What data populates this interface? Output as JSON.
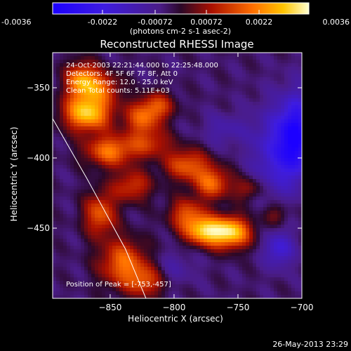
{
  "chart_data": {
    "type": "heatmap",
    "title": "Reconstructed RHESSI Image",
    "xlabel": "Heliocentric X (arcsec)",
    "ylabel": "Heliocentric Y (arcsec)",
    "xlim": [
      -895,
      -700
    ],
    "ylim": [
      -500,
      -325
    ],
    "x_ticks": [
      -850,
      -800,
      -750,
      -700
    ],
    "y_ticks": [
      -350,
      -400,
      -450
    ],
    "colorbar": {
      "range": [
        -0.0036,
        0.0036
      ],
      "tick_values": [
        -0.0036,
        -0.0022,
        -0.00072,
        0.00072,
        0.0022,
        0.0036
      ],
      "tick_labels": [
        "-0.0036",
        "-0.0022",
        "-0.00072",
        "0.00072",
        "0.0022",
        "0.0036"
      ],
      "units_label": "(photons cm-2 s-1 asec-2)"
    },
    "annotations": [
      "24-Oct-2003 22:21:44.000 to 22:25:48.000",
      "Detectors: 4F 5F 6F 7F 8F, Att 0",
      "Energy Range: 12.0 - 25.0 keV",
      "Clean    Total counts: 5.11E+03"
    ],
    "peak_label": "Position of Peak = [-753,-457]",
    "peak": [
      -753,
      -457
    ],
    "limb_curve": {
      "x": [
        -895,
        -868,
        -838,
        -822
      ],
      "y": [
        -372,
        -415,
        -465,
        -500
      ]
    },
    "sources": [
      {
        "x": -868,
        "y": -368,
        "value": 0.0034,
        "sx": 13,
        "sy": 9
      },
      {
        "x": -872,
        "y": -345,
        "value": 0.0028,
        "sx": 9,
        "sy": 9
      },
      {
        "x": -855,
        "y": -350,
        "value": 0.0016,
        "sx": 10,
        "sy": 8
      },
      {
        "x": -850,
        "y": -395,
        "value": 0.0024,
        "sx": 14,
        "sy": 8
      },
      {
        "x": -833,
        "y": -420,
        "value": 0.0017,
        "sx": 11,
        "sy": 8
      },
      {
        "x": -825,
        "y": -372,
        "value": 0.002,
        "sx": 10,
        "sy": 9
      },
      {
        "x": -812,
        "y": -363,
        "value": 0.0016,
        "sx": 9,
        "sy": 7
      },
      {
        "x": -818,
        "y": -390,
        "value": 0.0014,
        "sx": 12,
        "sy": 7
      },
      {
        "x": -790,
        "y": -405,
        "value": 0.0021,
        "sx": 12,
        "sy": 8
      },
      {
        "x": -790,
        "y": -440,
        "value": 0.0019,
        "sx": 10,
        "sy": 8
      },
      {
        "x": -770,
        "y": -418,
        "value": 0.0022,
        "sx": 10,
        "sy": 8
      },
      {
        "x": -757,
        "y": -453,
        "value": 0.0036,
        "sx": 12,
        "sy": 8
      },
      {
        "x": -778,
        "y": -452,
        "value": 0.0026,
        "sx": 10,
        "sy": 7
      },
      {
        "x": -840,
        "y": -475,
        "value": 0.0023,
        "sx": 13,
        "sy": 12
      },
      {
        "x": -858,
        "y": -440,
        "value": 0.0021,
        "sx": 9,
        "sy": 11
      },
      {
        "x": -822,
        "y": -488,
        "value": 0.0017,
        "sx": 10,
        "sy": 8
      },
      {
        "x": -742,
        "y": -422,
        "value": 0.0012,
        "sx": 8,
        "sy": 6
      },
      {
        "x": -720,
        "y": -440,
        "value": 0.001,
        "sx": 7,
        "sy": 6
      },
      {
        "x": -722,
        "y": -395,
        "value": -0.0016,
        "sx": 12,
        "sy": 22
      },
      {
        "x": -705,
        "y": -385,
        "value": -0.003,
        "sx": 8,
        "sy": 20
      },
      {
        "x": -718,
        "y": -465,
        "value": -0.0016,
        "sx": 8,
        "sy": 9
      },
      {
        "x": -760,
        "y": -380,
        "value": -0.0008,
        "sx": 12,
        "sy": 8
      },
      {
        "x": -800,
        "y": -478,
        "value": -0.0006,
        "sx": 12,
        "sy": 8
      }
    ],
    "background": -0.0004
  },
  "footer": {
    "timestamp": "26-May-2013 23:29"
  }
}
